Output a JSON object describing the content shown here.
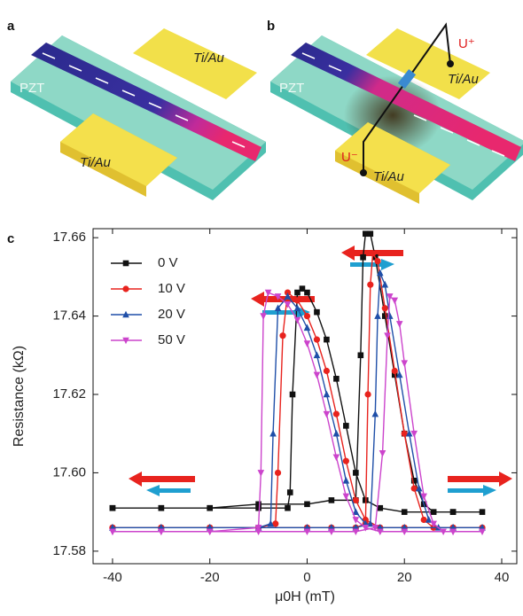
{
  "panels": {
    "a": {
      "letter": "a",
      "substrate": "PZT",
      "pad_top": "Ti/Au",
      "pad_bottom": "Ti/Au"
    },
    "b": {
      "letter": "b",
      "substrate": "PZT",
      "pad_top": "Ti/Au",
      "pad_bottom": "Ti/Au",
      "u_plus": "U⁺",
      "u_minus": "U⁻"
    }
  },
  "chart_data": {
    "type": "line",
    "letter": "c",
    "xlabel": "μ0H (mT)",
    "ylabel": "Resistance (kΩ)",
    "xlim": [
      -44,
      43.1
    ],
    "ylim": [
      17.5768,
      17.6623
    ],
    "xticks": [
      -40,
      -20,
      0,
      20,
      40
    ],
    "yticks": [
      17.58,
      {
        "value": 17.6,
        "label": "17.60"
      },
      17.62,
      17.64,
      17.66
    ],
    "legend": "upper left",
    "series": [
      {
        "name": "0 V",
        "color": "#111111",
        "marker": "square",
        "x": [
          -40,
          -30,
          -20,
          -10,
          0,
          5,
          10,
          11,
          11.5,
          12,
          13,
          14,
          16,
          18,
          20,
          22,
          24,
          26,
          30,
          36,
          30,
          20,
          15,
          12,
          10,
          8,
          6,
          4,
          2,
          0,
          -1,
          -2,
          -3,
          -3.5,
          -4,
          -10,
          -20,
          -30,
          -40
        ],
        "values": [
          17.591,
          17.591,
          17.591,
          17.592,
          17.592,
          17.593,
          17.593,
          17.63,
          17.655,
          17.661,
          17.661,
          17.655,
          17.64,
          17.625,
          17.61,
          17.598,
          17.592,
          17.59,
          17.59,
          17.59,
          17.59,
          17.59,
          17.591,
          17.593,
          17.6,
          17.612,
          17.624,
          17.634,
          17.641,
          17.646,
          17.647,
          17.646,
          17.62,
          17.595,
          17.591,
          17.591,
          17.591,
          17.591,
          17.591
        ]
      },
      {
        "name": "10 V",
        "color": "#e8231e",
        "marker": "circle",
        "x": [
          -40,
          -30,
          -20,
          -10,
          0,
          5,
          10,
          12,
          12.5,
          13,
          13.5,
          14.5,
          16,
          18,
          20,
          22,
          24,
          26,
          30,
          36,
          30,
          20,
          15,
          12,
          10,
          8,
          6,
          4,
          2,
          0,
          -2,
          -4,
          -5,
          -6,
          -6.5,
          -10,
          -20,
          -30,
          -40
        ],
        "values": [
          17.586,
          17.586,
          17.586,
          17.586,
          17.586,
          17.586,
          17.586,
          17.587,
          17.62,
          17.648,
          17.656,
          17.654,
          17.642,
          17.626,
          17.61,
          17.596,
          17.588,
          17.586,
          17.586,
          17.586,
          17.586,
          17.586,
          17.586,
          17.588,
          17.593,
          17.603,
          17.615,
          17.626,
          17.634,
          17.64,
          17.644,
          17.646,
          17.635,
          17.6,
          17.587,
          17.586,
          17.586,
          17.586,
          17.586
        ]
      },
      {
        "name": "20 V",
        "color": "#1f4fa8",
        "marker": "triangle-up",
        "x": [
          -40,
          -30,
          -20,
          -10,
          0,
          5,
          10,
          13,
          14,
          14.5,
          15,
          16,
          17,
          19,
          21,
          23,
          25,
          27,
          30,
          36,
          30,
          20,
          15,
          12,
          10,
          8,
          6,
          4,
          2,
          0,
          -2,
          -4,
          -6,
          -7,
          -7.5,
          -10,
          -20,
          -30,
          -40
        ],
        "values": [
          17.586,
          17.586,
          17.586,
          17.586,
          17.586,
          17.586,
          17.586,
          17.587,
          17.615,
          17.64,
          17.651,
          17.648,
          17.64,
          17.625,
          17.61,
          17.596,
          17.588,
          17.586,
          17.586,
          17.586,
          17.586,
          17.586,
          17.586,
          17.587,
          17.59,
          17.598,
          17.61,
          17.62,
          17.63,
          17.637,
          17.642,
          17.645,
          17.642,
          17.61,
          17.587,
          17.586,
          17.586,
          17.586,
          17.586
        ]
      },
      {
        "name": "50 V",
        "color": "#cc44cc",
        "marker": "triangle-down",
        "x": [
          -40,
          -30,
          -20,
          -10,
          0,
          5,
          10,
          14,
          15.5,
          16.5,
          17,
          18,
          19,
          20,
          22,
          24,
          26,
          28,
          30,
          36,
          30,
          20,
          15,
          12,
          10,
          8,
          6,
          4,
          2,
          0,
          -2,
          -4,
          -6,
          -8,
          -9,
          -9.5,
          -10,
          -20,
          -30,
          -40
        ],
        "values": [
          17.585,
          17.585,
          17.585,
          17.585,
          17.585,
          17.585,
          17.585,
          17.586,
          17.605,
          17.635,
          17.645,
          17.644,
          17.638,
          17.628,
          17.61,
          17.594,
          17.587,
          17.585,
          17.585,
          17.585,
          17.585,
          17.585,
          17.585,
          17.586,
          17.588,
          17.594,
          17.604,
          17.615,
          17.625,
          17.633,
          17.639,
          17.643,
          17.645,
          17.646,
          17.64,
          17.6,
          17.586,
          17.585,
          17.585,
          17.585
        ]
      }
    ]
  }
}
